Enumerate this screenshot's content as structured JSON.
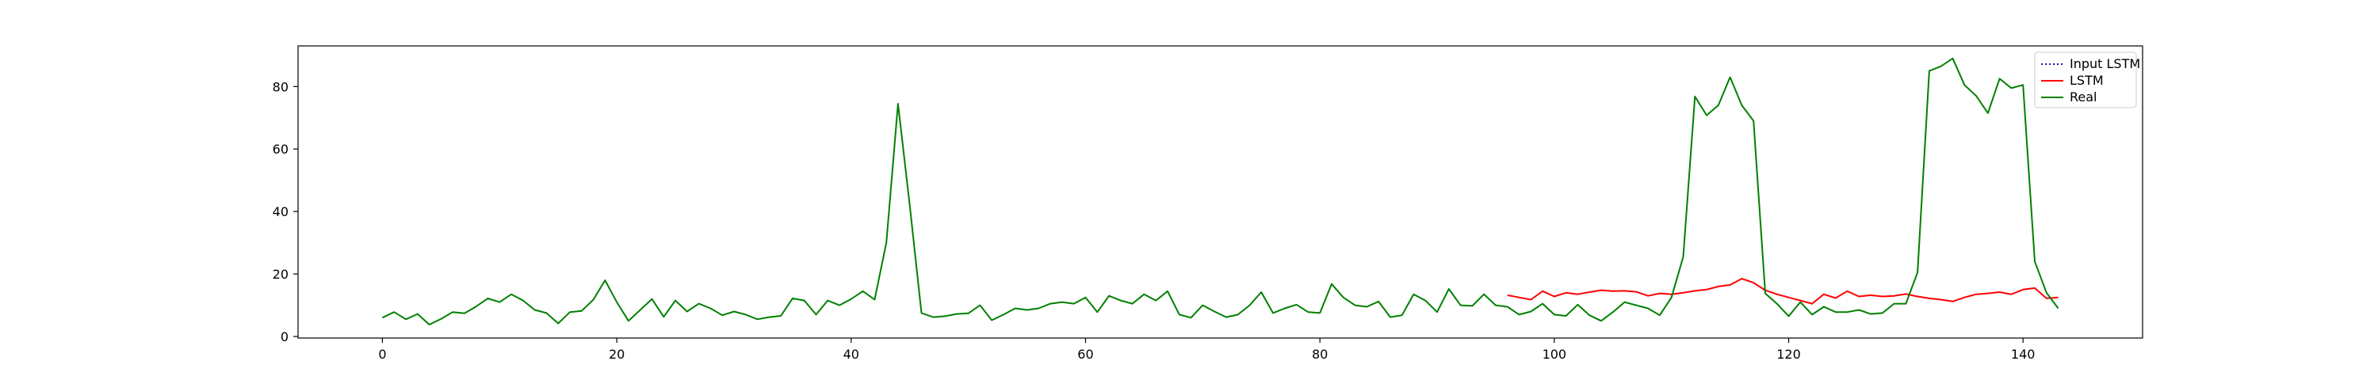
{
  "chart_data": {
    "type": "line",
    "title": "",
    "xlabel": "",
    "ylabel": "",
    "xlim": [
      -7.2,
      150.2
    ],
    "ylim": [
      -0.5,
      93
    ],
    "x_ticks": [
      0,
      20,
      40,
      60,
      80,
      100,
      120,
      140
    ],
    "y_ticks": [
      0,
      20,
      40,
      60,
      80
    ],
    "grid": false,
    "legend": {
      "placement": "top-right",
      "entries": [
        "Input LSTM",
        "LSTM",
        "Real"
      ]
    },
    "series": [
      {
        "name": "Input LSTM",
        "color": "#1a1aa8",
        "style": "dotted",
        "x": [],
        "values": []
      },
      {
        "name": "LSTM",
        "color": "#ff0000",
        "style": "solid",
        "x": [
          96,
          97,
          98,
          99,
          100,
          101,
          102,
          103,
          104,
          105,
          106,
          107,
          108,
          109,
          110,
          111,
          112,
          113,
          114,
          115,
          116,
          117,
          118,
          119,
          120,
          121,
          122,
          123,
          124,
          125,
          126,
          127,
          128,
          129,
          130,
          131,
          132,
          133,
          134,
          135,
          136,
          137,
          138,
          139,
          140,
          141,
          142,
          143
        ],
        "values": [
          13.2,
          12.5,
          11.8,
          14.5,
          12.8,
          14.0,
          13.5,
          14.2,
          14.8,
          14.5,
          14.6,
          14.3,
          13.0,
          13.8,
          13.5,
          14.0,
          14.6,
          15.0,
          16.0,
          16.5,
          18.5,
          17.2,
          14.8,
          13.5,
          12.5,
          11.5,
          10.5,
          13.5,
          12.3,
          14.5,
          12.8,
          13.2,
          12.8,
          13.0,
          13.6,
          12.8,
          12.2,
          11.8,
          11.2,
          12.5,
          13.5,
          13.8,
          14.2,
          13.5,
          15.0,
          15.5,
          12.2,
          12.5
        ]
      },
      {
        "name": "Real",
        "color": "#008000",
        "style": "solid",
        "x": [
          0,
          1,
          2,
          3,
          4,
          5,
          6,
          7,
          8,
          9,
          10,
          11,
          12,
          13,
          14,
          15,
          16,
          17,
          18,
          19,
          20,
          21,
          22,
          23,
          24,
          25,
          26,
          27,
          28,
          29,
          30,
          31,
          32,
          33,
          34,
          35,
          36,
          37,
          38,
          39,
          40,
          41,
          42,
          43,
          44,
          45,
          46,
          47,
          48,
          49,
          50,
          51,
          52,
          53,
          54,
          55,
          56,
          57,
          58,
          59,
          60,
          61,
          62,
          63,
          64,
          65,
          66,
          67,
          68,
          69,
          70,
          71,
          72,
          73,
          74,
          75,
          76,
          77,
          78,
          79,
          80,
          81,
          82,
          83,
          84,
          85,
          86,
          87,
          88,
          89,
          90,
          91,
          92,
          93,
          94,
          95,
          96,
          97,
          98,
          99,
          100,
          101,
          102,
          103,
          104,
          105,
          106,
          107,
          108,
          109,
          110,
          111,
          112,
          113,
          114,
          115,
          116,
          117,
          118,
          119,
          120,
          121,
          122,
          123,
          124,
          125,
          126,
          127,
          128,
          129,
          130,
          131,
          132,
          133,
          134,
          135,
          136,
          137,
          138,
          139,
          140,
          141,
          142,
          143
        ],
        "values": [
          6.0,
          7.8,
          5.5,
          7.2,
          3.8,
          5.6,
          7.8,
          7.4,
          9.6,
          12.2,
          11.0,
          13.5,
          11.5,
          8.5,
          7.5,
          4.2,
          7.8,
          8.2,
          11.8,
          18.0,
          11.0,
          5.0,
          8.5,
          12.0,
          6.3,
          11.5,
          8.0,
          10.5,
          9.0,
          6.8,
          8.0,
          7.0,
          5.5,
          6.2,
          6.6,
          12.2,
          11.5,
          7.0,
          11.5,
          10.0,
          12.0,
          14.5,
          11.8,
          30.0,
          74.5,
          42.0,
          7.5,
          6.2,
          6.5,
          7.2,
          7.4,
          10.0,
          5.2,
          7.0,
          9.0,
          8.5,
          9.0,
          10.5,
          11.0,
          10.5,
          12.5,
          7.8,
          13.0,
          11.5,
          10.5,
          13.5,
          11.5,
          14.5,
          7.0,
          6.0,
          10.0,
          8.0,
          6.2,
          7.0,
          10.0,
          14.2,
          7.5,
          9.0,
          10.2,
          7.8,
          7.5,
          16.8,
          12.5,
          10.0,
          9.5,
          11.2,
          6.2,
          6.8,
          13.5,
          11.5,
          7.8,
          15.2,
          10.0,
          9.8,
          13.5,
          10.0,
          9.5,
          7.0,
          8.0,
          10.5,
          7.0,
          6.6,
          10.2,
          6.8,
          5.0,
          7.8,
          11.0,
          10.0,
          9.0,
          6.8,
          12.5,
          25.5,
          76.8,
          70.8,
          74.0,
          83.0,
          74.0,
          69.0,
          13.8,
          10.5,
          6.5,
          11.0,
          7.0,
          9.5,
          7.8,
          7.8,
          8.5,
          7.2,
          7.5,
          10.5,
          10.5,
          20.5,
          85.0,
          86.5,
          89.0,
          80.5,
          77.0,
          71.5,
          82.5,
          79.5,
          80.5,
          24.0,
          14.0,
          9.0
        ]
      }
    ]
  }
}
